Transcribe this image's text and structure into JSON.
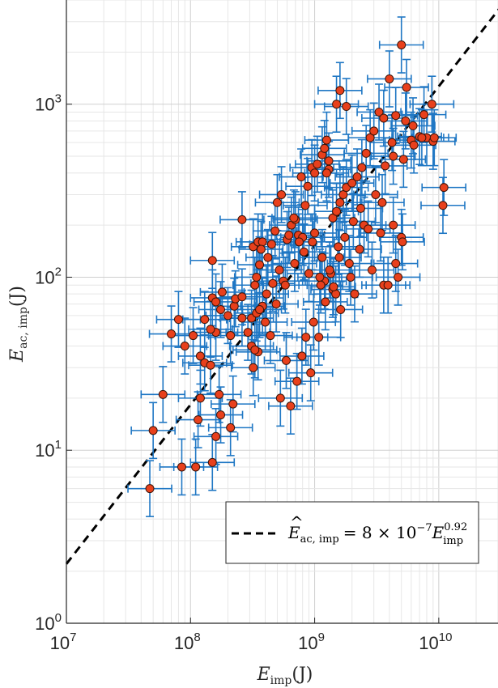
{
  "chart_data": {
    "type": "scatter",
    "xscale": "log",
    "yscale": "log",
    "xlim": [
      10000000.0,
      30000000000.0
    ],
    "ylim": [
      1,
      4000
    ],
    "grid": true,
    "minor_grid": true,
    "legend_placement": "bottom-right",
    "xlabel": {
      "sym": "E",
      "sub": "imp",
      "unit": "(J)"
    },
    "ylabel": {
      "sym": "E",
      "sub": "ac, imp",
      "unit": "(J)"
    },
    "xticks": [
      {
        "value": 10000000.0,
        "base": "10",
        "exp": "7"
      },
      {
        "value": 100000000.0,
        "base": "10",
        "exp": "8"
      },
      {
        "value": 1000000000.0,
        "base": "10",
        "exp": "9"
      },
      {
        "value": 10000000000.0,
        "base": "10",
        "exp": "10"
      }
    ],
    "yticks": [
      {
        "value": 1,
        "base": "10",
        "exp": "0"
      },
      {
        "value": 10,
        "base": "10",
        "exp": "1"
      },
      {
        "value": 100,
        "base": "10",
        "exp": "2"
      },
      {
        "value": 1000,
        "base": "10",
        "exp": "3"
      }
    ],
    "fit": {
      "coef": 8e-07,
      "exponent": 0.92,
      "legend": {
        "lhs_sym": "E",
        "lhs_sub": "ac, imp",
        "rhs_pre": "= 8 × 10",
        "rhs_exp": "−7",
        "rhs_sym": "E",
        "rhs_sub": "imp",
        "rhs_sup": "0.92"
      }
    },
    "colors": {
      "marker_fill": "#e8401c",
      "marker_edge": "#3b1308",
      "errorbar": "#1f77c4",
      "fit_line": "#000000",
      "grid": "#d9d9d9"
    },
    "error_factor": {
      "x": 1.5,
      "y": 1.45
    },
    "series": [
      {
        "x": [
          47000000.0,
          60000000.0,
          50000000.0,
          85000000.0,
          110000000.0,
          115000000.0,
          150000000.0,
          160000000.0,
          175000000.0,
          170000000.0,
          210000000.0,
          220000000.0,
          120000000.0,
          130000000.0,
          145000000.0,
          200000000.0,
          90000000.0,
          105000000.0,
          130000000.0,
          160000000.0,
          175000000.0,
          150000000.0,
          70000000.0,
          80000000.0,
          120000000.0,
          145000000.0,
          160000000.0,
          180000000.0,
          210000000.0,
          225000000.0,
          260000000.0,
          150000000.0,
          320000000.0,
          350000000.0,
          310000000.0,
          330000000.0,
          340000000.0,
          360000000.0,
          320000000.0,
          350000000.0,
          380000000.0,
          420000000.0,
          370000000.0,
          450000000.0,
          480000000.0,
          500000000.0,
          540000000.0,
          600000000.0,
          650000000.0,
          700000000.0,
          740000000.0,
          780000000.0,
          840000000.0,
          880000000.0,
          950000000.0,
          1000000000.0,
          1050000000.0,
          1150000000.0,
          1200000000.0,
          1250000000.0,
          1300000000.0,
          1400000000.0,
          1500000000.0,
          1600000000.0,
          1700000000.0,
          1800000000.0,
          2000000000.0,
          2200000000.0,
          2400000000.0,
          2600000000.0,
          2800000000.0,
          3000000000.0,
          3300000000.0,
          3600000000.0,
          4000000000.0,
          4200000000.0,
          4500000000.0,
          5000000000.0,
          5500000000.0,
          6000000000.0,
          7000000000.0,
          8000000000.0,
          9000000000.0,
          11000000000.0,
          5000000000.0,
          4500000000.0,
          3500000000.0,
          2500000000.0,
          1900000000.0,
          1400000000.0,
          1200000000.0,
          1100000000.0,
          1000000000.0,
          900000000.0,
          800000000.0,
          750000000.0,
          680000000.0,
          620000000.0,
          560000000.0,
          520000000.0,
          460000000.0,
          410000000.0,
          380000000.0,
          340000000.0,
          290000000.0,
          260000000.0,
          230000000.0,
          310000000.0,
          440000000.0,
          590000000.0,
          720000000.0,
          850000000.0,
          980000000.0,
          1120000000.0,
          1350000000.0,
          1550000000.0,
          1750000000.0,
          2050000000.0,
          2350000000.0,
          2700000000.0,
          3100000000.0,
          3700000000.0,
          4300000000.0,
          5200000000.0,
          6300000000.0,
          7600000000.0,
          9200000000.0,
          10800000000.0,
          330000000.0,
          400000000.0,
          490000000.0,
          580000000.0,
          690000000.0,
          820000000.0,
          960000000.0,
          1150000000.0,
          1320000000.0,
          1480000000.0,
          1620000000.0,
          1950000000.0,
          2300000000.0,
          2900000000.0,
          3400000000.0,
          4700000000.0,
          5100000000.0,
          4300000000.0,
          3600000000.0,
          1500000000.0,
          1600000000.0,
          1800000000.0,
          1300000000.0,
          1250000000.0,
          5400000000.0,
          6200000000.0,
          7300000000.0,
          8800000000.0,
          3900000000.0,
          2100000000.0,
          260000000.0,
          360000000.0,
          530000000.0,
          640000000.0,
          790000000.0,
          930000000.0,
          1080000000.0,
          1220000000.0,
          1420000000.0,
          1580000000.0
        ],
        "y": [
          6,
          21,
          13,
          8,
          8,
          15,
          8.5,
          12,
          16,
          21,
          13.5,
          18.5,
          20,
          32,
          31,
          60,
          40,
          46,
          57,
          48,
          65,
          76,
          47,
          57,
          35,
          50,
          72,
          82,
          46,
          68,
          215,
          125,
          30,
          37,
          58,
          90,
          100,
          118,
          150,
          160,
          160,
          130,
          145,
          155,
          185,
          270,
          300,
          165,
          200,
          215,
          175,
          380,
          260,
          335,
          430,
          400,
          450,
          510,
          555,
          620,
          470,
          220,
          240,
          270,
          300,
          330,
          350,
          380,
          430,
          520,
          640,
          700,
          900,
          830,
          1400,
          600,
          860,
          2200,
          1250,
          620,
          650,
          640,
          610,
          330,
          170,
          120,
          270,
          200,
          120,
          85,
          95,
          100,
          180,
          105,
          170,
          160,
          220,
          175,
          95,
          110,
          92,
          80,
          68,
          62,
          48,
          58,
          75,
          40,
          46,
          33,
          25,
          45,
          55,
          90,
          105,
          150,
          170,
          210,
          250,
          190,
          300,
          440,
          500,
          480,
          580,
          870,
          640,
          260,
          38,
          55,
          70,
          90,
          120,
          140,
          160,
          130,
          110,
          80,
          65,
          100,
          145,
          110,
          180,
          100,
          160,
          200,
          90,
          1000,
          1200,
          970,
          420,
          400,
          800,
          750,
          640,
          1000,
          90,
          80,
          77,
          65,
          20,
          18,
          35,
          28,
          45,
          72,
          88,
          130
        ]
      }
    ]
  }
}
